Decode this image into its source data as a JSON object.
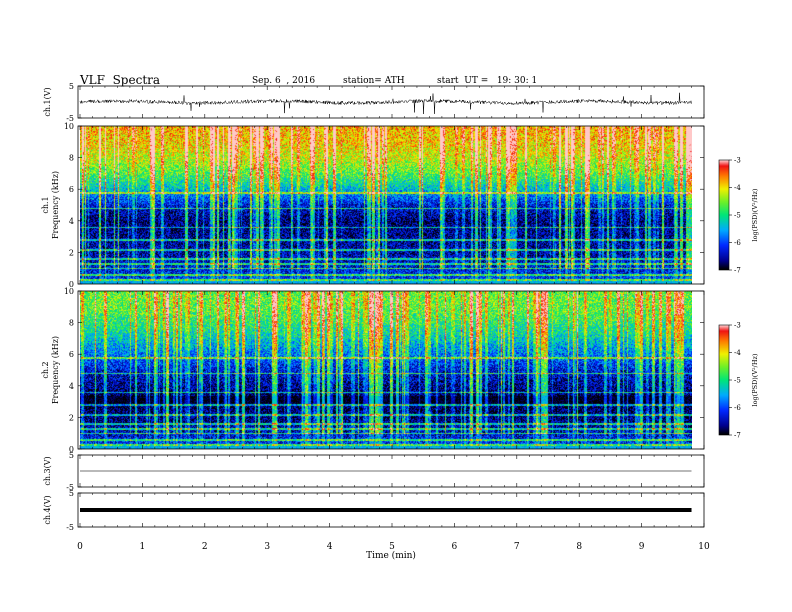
{
  "header": {
    "title": "VLF  Spectra",
    "date": "Sep. 6  , 2016",
    "station": "station= ATH",
    "start": "start  UT =   19: 30: 1"
  },
  "chart_data": [
    {
      "type": "line",
      "panel": "ch1-waveform",
      "ylabel": "ch.1(V)",
      "y_ticks": [
        "5",
        "-5"
      ],
      "ylim": [
        -5,
        5
      ],
      "xlim": [
        0,
        10
      ],
      "series": [
        {
          "baseline": 0,
          "typical_range": [
            -0.8,
            0.8
          ],
          "spike_range": [
            -4,
            3.5
          ]
        }
      ]
    },
    {
      "type": "heatmap",
      "panel": "ch1-spectrogram",
      "ylabel": "ch.1\nFrequency  (kHz)",
      "y_ticks": [
        "0",
        "2",
        "4",
        "6",
        "8",
        "10"
      ],
      "ylim": [
        0,
        10
      ],
      "xlim": [
        0,
        9.8
      ],
      "colorbar_label": "log(PSD)(V²/Hz)",
      "colorbar_ticks": [
        "-3",
        "-4",
        "-5",
        "-6",
        "-7"
      ],
      "colorbar_range": [
        -7,
        -3
      ],
      "mean_logpsd_by_frequency": [
        [
          0,
          -6.0
        ],
        [
          1,
          -6.3
        ],
        [
          2,
          -6.5
        ],
        [
          3,
          -6.6
        ],
        [
          4,
          -6.7
        ],
        [
          5,
          -6.3
        ],
        [
          6,
          -5.4
        ],
        [
          7,
          -4.7
        ],
        [
          8,
          -4.2
        ],
        [
          9,
          -3.9
        ],
        [
          10,
          -3.8
        ]
      ]
    },
    {
      "type": "heatmap",
      "panel": "ch2-spectrogram",
      "ylabel": "ch.2\nFrequency  (kHz)",
      "y_ticks": [
        "0",
        "2",
        "4",
        "6",
        "8",
        "10"
      ],
      "ylim": [
        0,
        10
      ],
      "xlim": [
        0,
        9.8
      ],
      "colorbar_label": "log(PSD)(V²/Hz)",
      "colorbar_ticks": [
        "-3",
        "-4",
        "-5",
        "-6",
        "-7"
      ],
      "colorbar_range": [
        -7,
        -3
      ],
      "mean_logpsd_by_frequency": [
        [
          0,
          -6.0
        ],
        [
          1,
          -6.4
        ],
        [
          2,
          -6.7
        ],
        [
          3,
          -6.9
        ],
        [
          4,
          -6.6
        ],
        [
          5,
          -6.3
        ],
        [
          6,
          -5.8
        ],
        [
          7,
          -5.3
        ],
        [
          8,
          -4.9
        ],
        [
          9,
          -4.6
        ],
        [
          10,
          -4.6
        ]
      ]
    },
    {
      "type": "line",
      "panel": "ch3-waveform",
      "ylabel": "ch.3(V)",
      "y_ticks": [
        "5",
        "-5"
      ],
      "ylim": [
        -5,
        5
      ],
      "xlim": [
        0,
        10
      ],
      "series": [
        {
          "constant": 0
        }
      ]
    },
    {
      "type": "line",
      "panel": "ch4-waveform",
      "ylabel": "ch.4(V)",
      "y_ticks": [
        "5",
        "-5"
      ],
      "ylim": [
        -5,
        5
      ],
      "xlim": [
        0,
        10
      ],
      "series": [
        {
          "constant": 0,
          "thick": true
        }
      ]
    }
  ],
  "x_axis": {
    "label": "Time  (min)",
    "ticks": [
      "0",
      "1",
      "2",
      "3",
      "4",
      "5",
      "6",
      "7",
      "8",
      "9",
      "10"
    ]
  }
}
